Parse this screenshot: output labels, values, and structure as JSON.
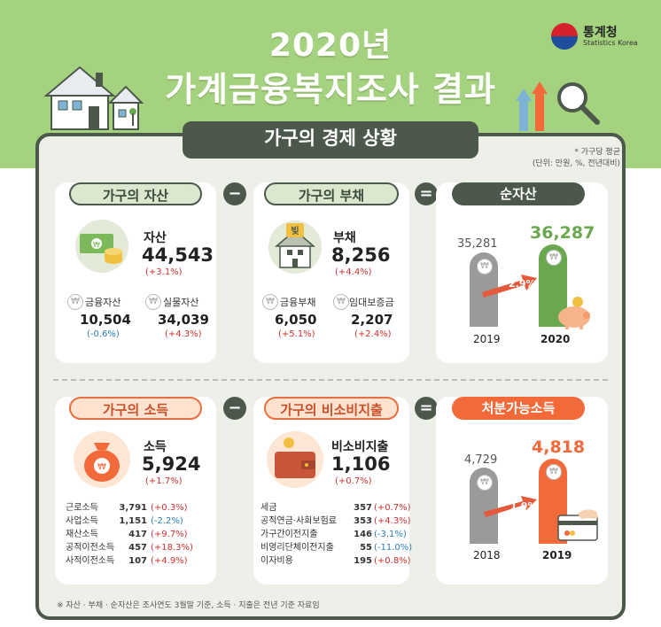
{
  "header": {
    "year": "2020년",
    "title": "가계금융복지조사 결과",
    "logo_name": "통계청",
    "logo_sub": "Statistics Korea"
  },
  "section_title": "가구의 경제 상황",
  "notes": {
    "line1": "* 가구당 평균",
    "line2": "(단위: 만원, %, 전년대비)"
  },
  "operators": {
    "minus": "−",
    "equals": "="
  },
  "assets": {
    "pill": "가구의 자산",
    "label": "자산",
    "value": "44,543",
    "change": "(+3.1%)",
    "financial_label": "금융자산",
    "financial_value": "10,504",
    "financial_change": "(-0.6%)",
    "real_label": "실물자산",
    "real_value": "34,039",
    "real_change": "(+4.3%)"
  },
  "debt": {
    "pill": "가구의 부채",
    "label": "부채",
    "value": "8,256",
    "change": "(+4.4%)",
    "financial_label": "금융부채",
    "financial_value": "6,050",
    "financial_change": "(+5.1%)",
    "lease_label": "임대보증금",
    "lease_value": "2,207",
    "lease_change": "(+2.4%)",
    "icon_text": "빚"
  },
  "net_assets": {
    "pill": "순자산",
    "growth": "2.9%",
    "bars": [
      {
        "year": "2019",
        "value": "35,281"
      },
      {
        "year": "2020",
        "value": "36,287"
      }
    ]
  },
  "income": {
    "pill": "가구의 소득",
    "label": "소득",
    "value": "5,924",
    "change": "(+1.7%)",
    "items": [
      {
        "name": "근로소득",
        "value": "3,791",
        "change": "(+0.3%)"
      },
      {
        "name": "사업소득",
        "value": "1,151",
        "change": "(-2.2%)"
      },
      {
        "name": "재산소득",
        "value": "417",
        "change": "(+9.7%)"
      },
      {
        "name": "공적이전소득",
        "value": "457",
        "change": "(+18.3%)"
      },
      {
        "name": "사적이전소득",
        "value": "107",
        "change": "(+4.9%)"
      }
    ]
  },
  "nonconsumption": {
    "pill": "가구의 비소비지출",
    "label": "비소비지출",
    "value": "1,106",
    "change": "(+0.7%)",
    "items": [
      {
        "name": "세금",
        "value": "357",
        "change": "(+0.7%)"
      },
      {
        "name": "공적연금·사회보험료",
        "value": "353",
        "change": "(+4.3%)"
      },
      {
        "name": "가구간이전지출",
        "value": "146",
        "change": "(-3.1%)"
      },
      {
        "name": "비영리단체이전지출",
        "value": "55",
        "change": "(-11.0%)"
      },
      {
        "name": "이자비용",
        "value": "195",
        "change": "(+0.8%)"
      }
    ]
  },
  "disposable": {
    "pill": "처분가능소득",
    "growth": "1.9%",
    "bars": [
      {
        "year": "2018",
        "value": "4,729"
      },
      {
        "year": "2019",
        "value": "4,818"
      }
    ]
  },
  "won_symbol": "₩",
  "footer": "※ 자산 · 부채 · 순자산은 조사연도 3월말 기준, 소득 · 지출은 전년 기준 자료임",
  "colors": {
    "top_bg": "#a5d27e",
    "dark_green": "#4b584b",
    "green_accent": "#6aa84f",
    "orange_accent": "#f26a3a",
    "negative_blue": "#2a7db8",
    "positive_red": "#d03030"
  }
}
